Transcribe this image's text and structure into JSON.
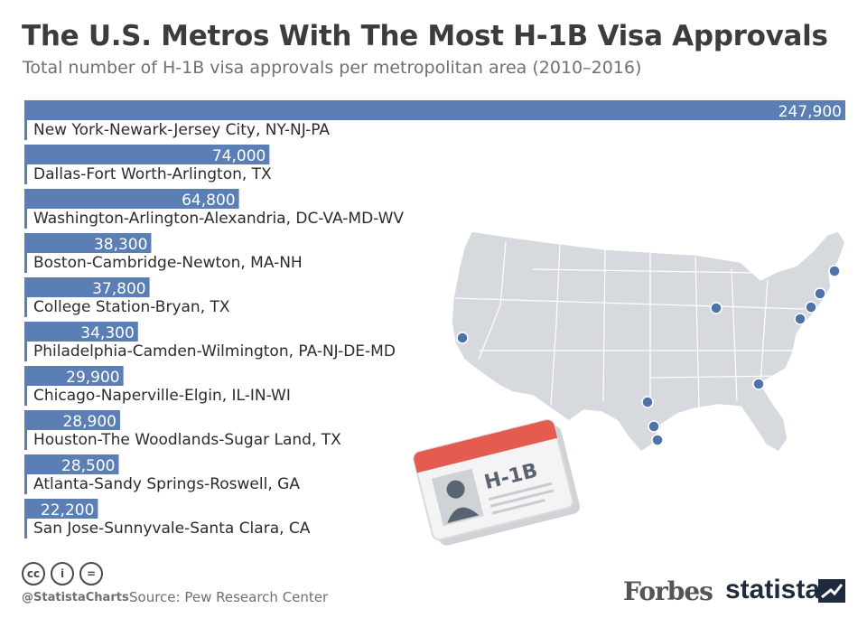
{
  "header": {
    "title": "The U.S. Metros With The Most H-1B Visa Approvals",
    "subtitle": "Total number of H-1B visa approvals per metropolitan area (2010–2016)"
  },
  "chart_data": {
    "type": "bar",
    "orientation": "horizontal",
    "title": "The U.S. Metros With The Most H-1B Visa Approvals",
    "subtitle": "Total number of H-1B visa approvals per metropolitan area (2010–2016)",
    "categories": [
      "New York-Newark-Jersey City, NY-NJ-PA",
      "Dallas-Fort Worth-Arlington, TX",
      "Washington-Arlington-Alexandria, DC-VA-MD-WV",
      "Boston-Cambridge-Newton, MA-NH",
      "College Station-Bryan, TX",
      "Philadelphia-Camden-Wilmington, PA-NJ-DE-MD",
      "Chicago-Naperville-Elgin, IL-IN-WI",
      "Houston-The Woodlands-Sugar Land, TX",
      "Atlanta-Sandy Springs-Roswell, GA",
      "San Jose-Sunnyvale-Santa Clara, CA"
    ],
    "values": [
      247900,
      74000,
      64800,
      38300,
      37800,
      34300,
      29900,
      28900,
      28500,
      22200
    ],
    "value_labels": [
      "247,900",
      "74,000",
      "64,800",
      "38,300",
      "37,800",
      "34,300",
      "29,900",
      "28,900",
      "28,500",
      "22,200"
    ],
    "xlim": [
      0,
      247900
    ],
    "bar_color": "#5b7fb5",
    "grid": false,
    "legend": "none"
  },
  "illustration": {
    "badge_text": "H-1B",
    "map_dot_color": "#4f73a8",
    "map_fill_color": "#d6d9de"
  },
  "footer": {
    "license_icons": [
      "cc-icon",
      "by-icon",
      "nd-icon"
    ],
    "license_glyphs": [
      "cc",
      "i",
      "="
    ],
    "handle": "@StatistaCharts",
    "source": "Source: Pew Research Center",
    "brand_forbes": "Forbes",
    "brand_statista": "statista"
  }
}
